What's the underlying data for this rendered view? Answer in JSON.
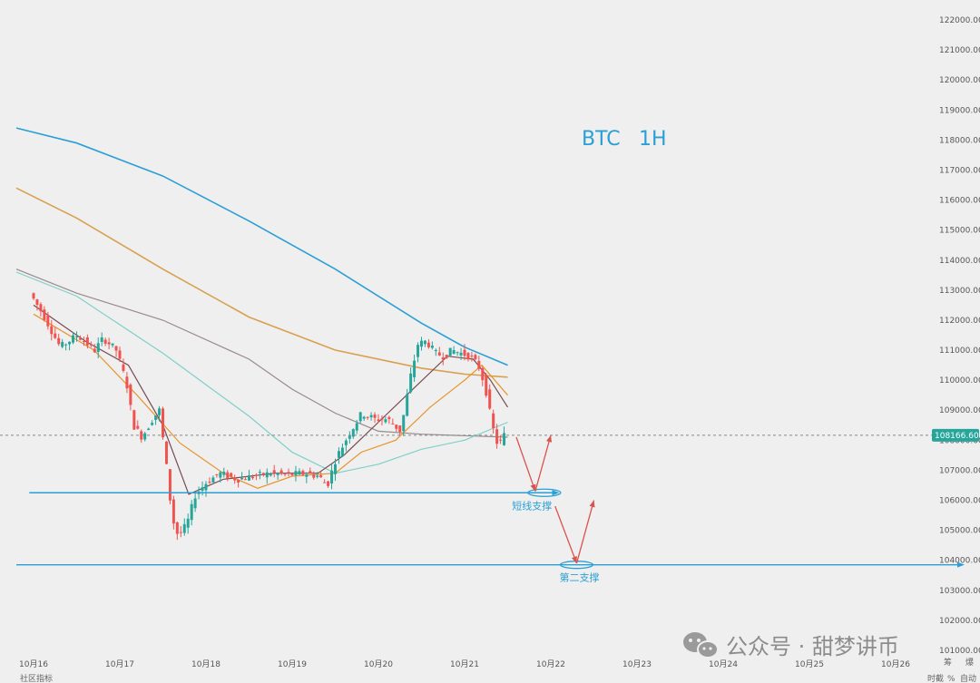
{
  "chart_data": {
    "type": "candlestick",
    "title": "BTC",
    "timeframe": "1H",
    "x_ticks": [
      "10月16",
      "10月17",
      "10月18",
      "10月19",
      "10月20",
      "10月21",
      "10月22",
      "10月23",
      "10月24",
      "10月25",
      "10月26"
    ],
    "y_ticks": [
      "122000.00",
      "121000.00",
      "120000.00",
      "119000.00",
      "118000.00",
      "117000.00",
      "116000.00",
      "115000.00",
      "114000.00",
      "113000.00",
      "112000.00",
      "111000.00",
      "110000.00",
      "109000.00",
      "108000.00",
      "107000.00",
      "106000.00",
      "105000.00",
      "104000.00",
      "103000.00",
      "102000.00",
      "101000.00"
    ],
    "ylim": [
      101000,
      122000
    ],
    "current_price": "108166.60",
    "current_price_value": 108166.6,
    "price_path": [
      {
        "x": 0.0,
        "y": 112900
      },
      {
        "x": 0.15,
        "y": 112200
      },
      {
        "x": 0.35,
        "y": 111100
      },
      {
        "x": 0.55,
        "y": 111500
      },
      {
        "x": 0.75,
        "y": 111000
      },
      {
        "x": 0.85,
        "y": 111400
      },
      {
        "x": 1.0,
        "y": 111000
      },
      {
        "x": 1.12,
        "y": 109900
      },
      {
        "x": 1.2,
        "y": 108500
      },
      {
        "x": 1.3,
        "y": 108100
      },
      {
        "x": 1.42,
        "y": 108700
      },
      {
        "x": 1.5,
        "y": 109000
      },
      {
        "x": 1.58,
        "y": 107200
      },
      {
        "x": 1.65,
        "y": 105400
      },
      {
        "x": 1.72,
        "y": 104800
      },
      {
        "x": 1.82,
        "y": 105200
      },
      {
        "x": 1.92,
        "y": 106200
      },
      {
        "x": 2.05,
        "y": 106600
      },
      {
        "x": 2.2,
        "y": 106900
      },
      {
        "x": 2.4,
        "y": 106700
      },
      {
        "x": 2.6,
        "y": 106800
      },
      {
        "x": 2.8,
        "y": 106900
      },
      {
        "x": 3.0,
        "y": 106850
      },
      {
        "x": 3.2,
        "y": 106900
      },
      {
        "x": 3.35,
        "y": 106800
      },
      {
        "x": 3.45,
        "y": 106500
      },
      {
        "x": 3.55,
        "y": 107400
      },
      {
        "x": 3.7,
        "y": 108200
      },
      {
        "x": 3.85,
        "y": 108900
      },
      {
        "x": 4.0,
        "y": 108700
      },
      {
        "x": 4.15,
        "y": 108700
      },
      {
        "x": 4.3,
        "y": 108300
      },
      {
        "x": 4.42,
        "y": 110200
      },
      {
        "x": 4.5,
        "y": 111200
      },
      {
        "x": 4.6,
        "y": 111300
      },
      {
        "x": 4.7,
        "y": 110900
      },
      {
        "x": 4.8,
        "y": 110800
      },
      {
        "x": 4.9,
        "y": 111000
      },
      {
        "x": 5.0,
        "y": 110900
      },
      {
        "x": 5.1,
        "y": 110800
      },
      {
        "x": 5.2,
        "y": 110500
      },
      {
        "x": 5.28,
        "y": 109800
      },
      {
        "x": 5.36,
        "y": 108500
      },
      {
        "x": 5.43,
        "y": 107800
      },
      {
        "x": 5.5,
        "y": 108166
      }
    ],
    "moving_averages": [
      {
        "color": "#2a9fd6",
        "points": [
          [
            -0.2,
            118400
          ],
          [
            0.5,
            117900
          ],
          [
            1.5,
            116800
          ],
          [
            2.5,
            115300
          ],
          [
            3.5,
            113700
          ],
          [
            4.5,
            111900
          ],
          [
            5.0,
            111100
          ],
          [
            5.5,
            110500
          ]
        ]
      },
      {
        "color": "#d8a050",
        "points": [
          [
            -0.2,
            116400
          ],
          [
            0.5,
            115400
          ],
          [
            1.5,
            113700
          ],
          [
            2.5,
            112100
          ],
          [
            3.5,
            111000
          ],
          [
            4.5,
            110400
          ],
          [
            5.0,
            110200
          ],
          [
            5.5,
            110100
          ]
        ]
      },
      {
        "color": "#9a8a8a",
        "points": [
          [
            -0.2,
            113700
          ],
          [
            0.5,
            112900
          ],
          [
            1.5,
            112000
          ],
          [
            2.5,
            110700
          ],
          [
            3.0,
            109700
          ],
          [
            3.5,
            108900
          ],
          [
            4.0,
            108300
          ],
          [
            4.5,
            108200
          ],
          [
            5.5,
            108100
          ]
        ]
      },
      {
        "color": "#7fd0c8",
        "points": [
          [
            -0.2,
            113600
          ],
          [
            0.5,
            112800
          ],
          [
            1.5,
            110900
          ],
          [
            2.5,
            108800
          ],
          [
            3.0,
            107600
          ],
          [
            3.5,
            106900
          ],
          [
            4.0,
            107200
          ],
          [
            4.5,
            107700
          ],
          [
            5.0,
            108000
          ],
          [
            5.5,
            108600
          ]
        ]
      },
      {
        "color": "#e8942c",
        "points": [
          [
            0.0,
            112200
          ],
          [
            0.7,
            111000
          ],
          [
            1.2,
            109500
          ],
          [
            1.7,
            107900
          ],
          [
            2.2,
            106900
          ],
          [
            2.6,
            106400
          ],
          [
            3.0,
            106800
          ],
          [
            3.5,
            106900
          ],
          [
            3.8,
            107600
          ],
          [
            4.2,
            108000
          ],
          [
            4.6,
            109100
          ],
          [
            5.0,
            110000
          ],
          [
            5.2,
            110500
          ],
          [
            5.5,
            109500
          ]
        ]
      },
      {
        "color": "#7a4a52",
        "points": [
          [
            0.0,
            112500
          ],
          [
            0.6,
            111300
          ],
          [
            1.1,
            110500
          ],
          [
            1.5,
            108500
          ],
          [
            1.8,
            106200
          ],
          [
            2.2,
            106700
          ],
          [
            2.8,
            106900
          ],
          [
            3.3,
            106900
          ],
          [
            3.6,
            107500
          ],
          [
            4.0,
            108600
          ],
          [
            4.4,
            109700
          ],
          [
            4.8,
            110800
          ],
          [
            5.1,
            110700
          ],
          [
            5.3,
            110000
          ],
          [
            5.5,
            109100
          ]
        ]
      }
    ],
    "annotations": {
      "support_1": {
        "label": "短线支撑",
        "price": 106250,
        "x_start": -0.05,
        "x_end": 6.1
      },
      "support_2": {
        "label": "第二支撑",
        "price": 103850,
        "x_start": -0.2,
        "x_end": 10.8
      },
      "arrows": [
        {
          "from": [
            5.6,
            108100
          ],
          "to": [
            5.82,
            106300
          ],
          "color": "#d9534f"
        },
        {
          "from": [
            5.82,
            106300
          ],
          "to": [
            6.0,
            108166
          ],
          "color": "#d9534f"
        },
        {
          "from": [
            6.05,
            105800
          ],
          "to": [
            6.3,
            103900
          ],
          "color": "#d9534f"
        },
        {
          "from": [
            6.3,
            103900
          ],
          "to": [
            6.5,
            106000
          ],
          "color": "#d9534f"
        }
      ]
    },
    "colors": {
      "up": "#26a69a",
      "down": "#ef5350",
      "support": "#2a9fd6",
      "price_badge": "#26a69a"
    }
  },
  "watermark": {
    "icon": "wechat-icon",
    "text": "公众号 · 甜梦讲币"
  },
  "footer": {
    "left": "社区指标",
    "right_1": "时截",
    "right_2": "%",
    "right_3": "自动",
    "corner_top": "筹",
    "corner_top_2": "爆"
  }
}
